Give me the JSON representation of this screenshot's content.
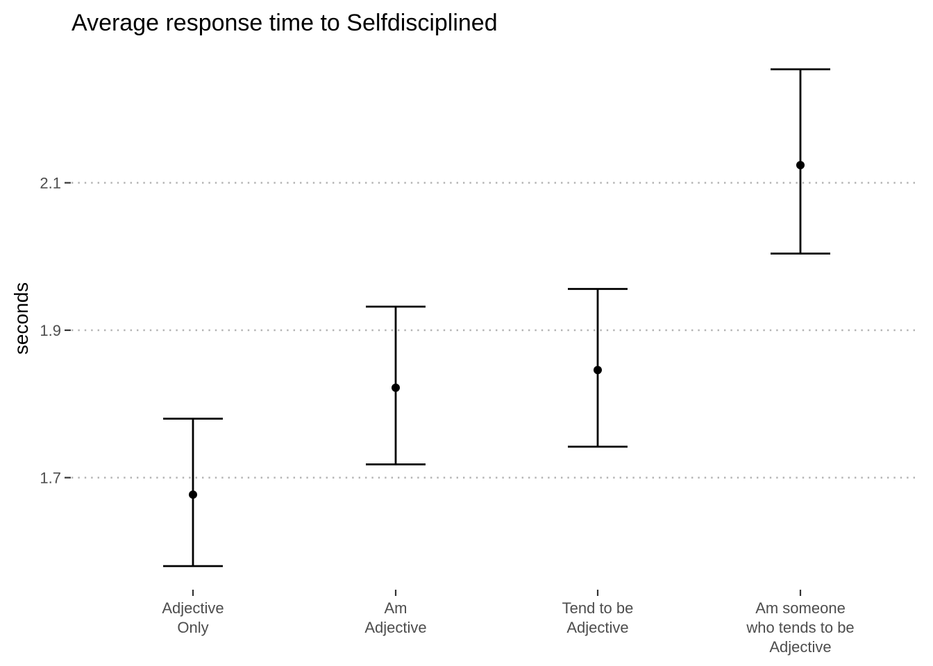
{
  "chart_data": {
    "type": "scatter",
    "subtype": "point-with-error-bars",
    "title": "Average response time to Selfdisciplined",
    "xlabel": "",
    "ylabel": "seconds",
    "categories": [
      [
        "Adjective",
        "Only"
      ],
      [
        "Am",
        "Adjective"
      ],
      [
        "Tend to be",
        "Adjective"
      ],
      [
        "Am someone",
        "who tends to be",
        "Adjective"
      ]
    ],
    "values": [
      1.677,
      1.822,
      1.846,
      2.124
    ],
    "lower": [
      1.58,
      1.718,
      1.742,
      2.004
    ],
    "upper": [
      1.78,
      1.932,
      1.956,
      2.254
    ],
    "yticks": [
      1.7,
      1.9,
      2.1
    ],
    "ytick_labels": [
      "1.7",
      "1.9",
      "2.1"
    ],
    "ylim": [
      1.54,
      2.3
    ],
    "grid": "horizontal-dotted-major",
    "legend": "none",
    "colors": {
      "marks": "#000000",
      "grid": "#b3b3b3",
      "tick_text": "#4d4d4d",
      "title_text": "#000000"
    }
  }
}
